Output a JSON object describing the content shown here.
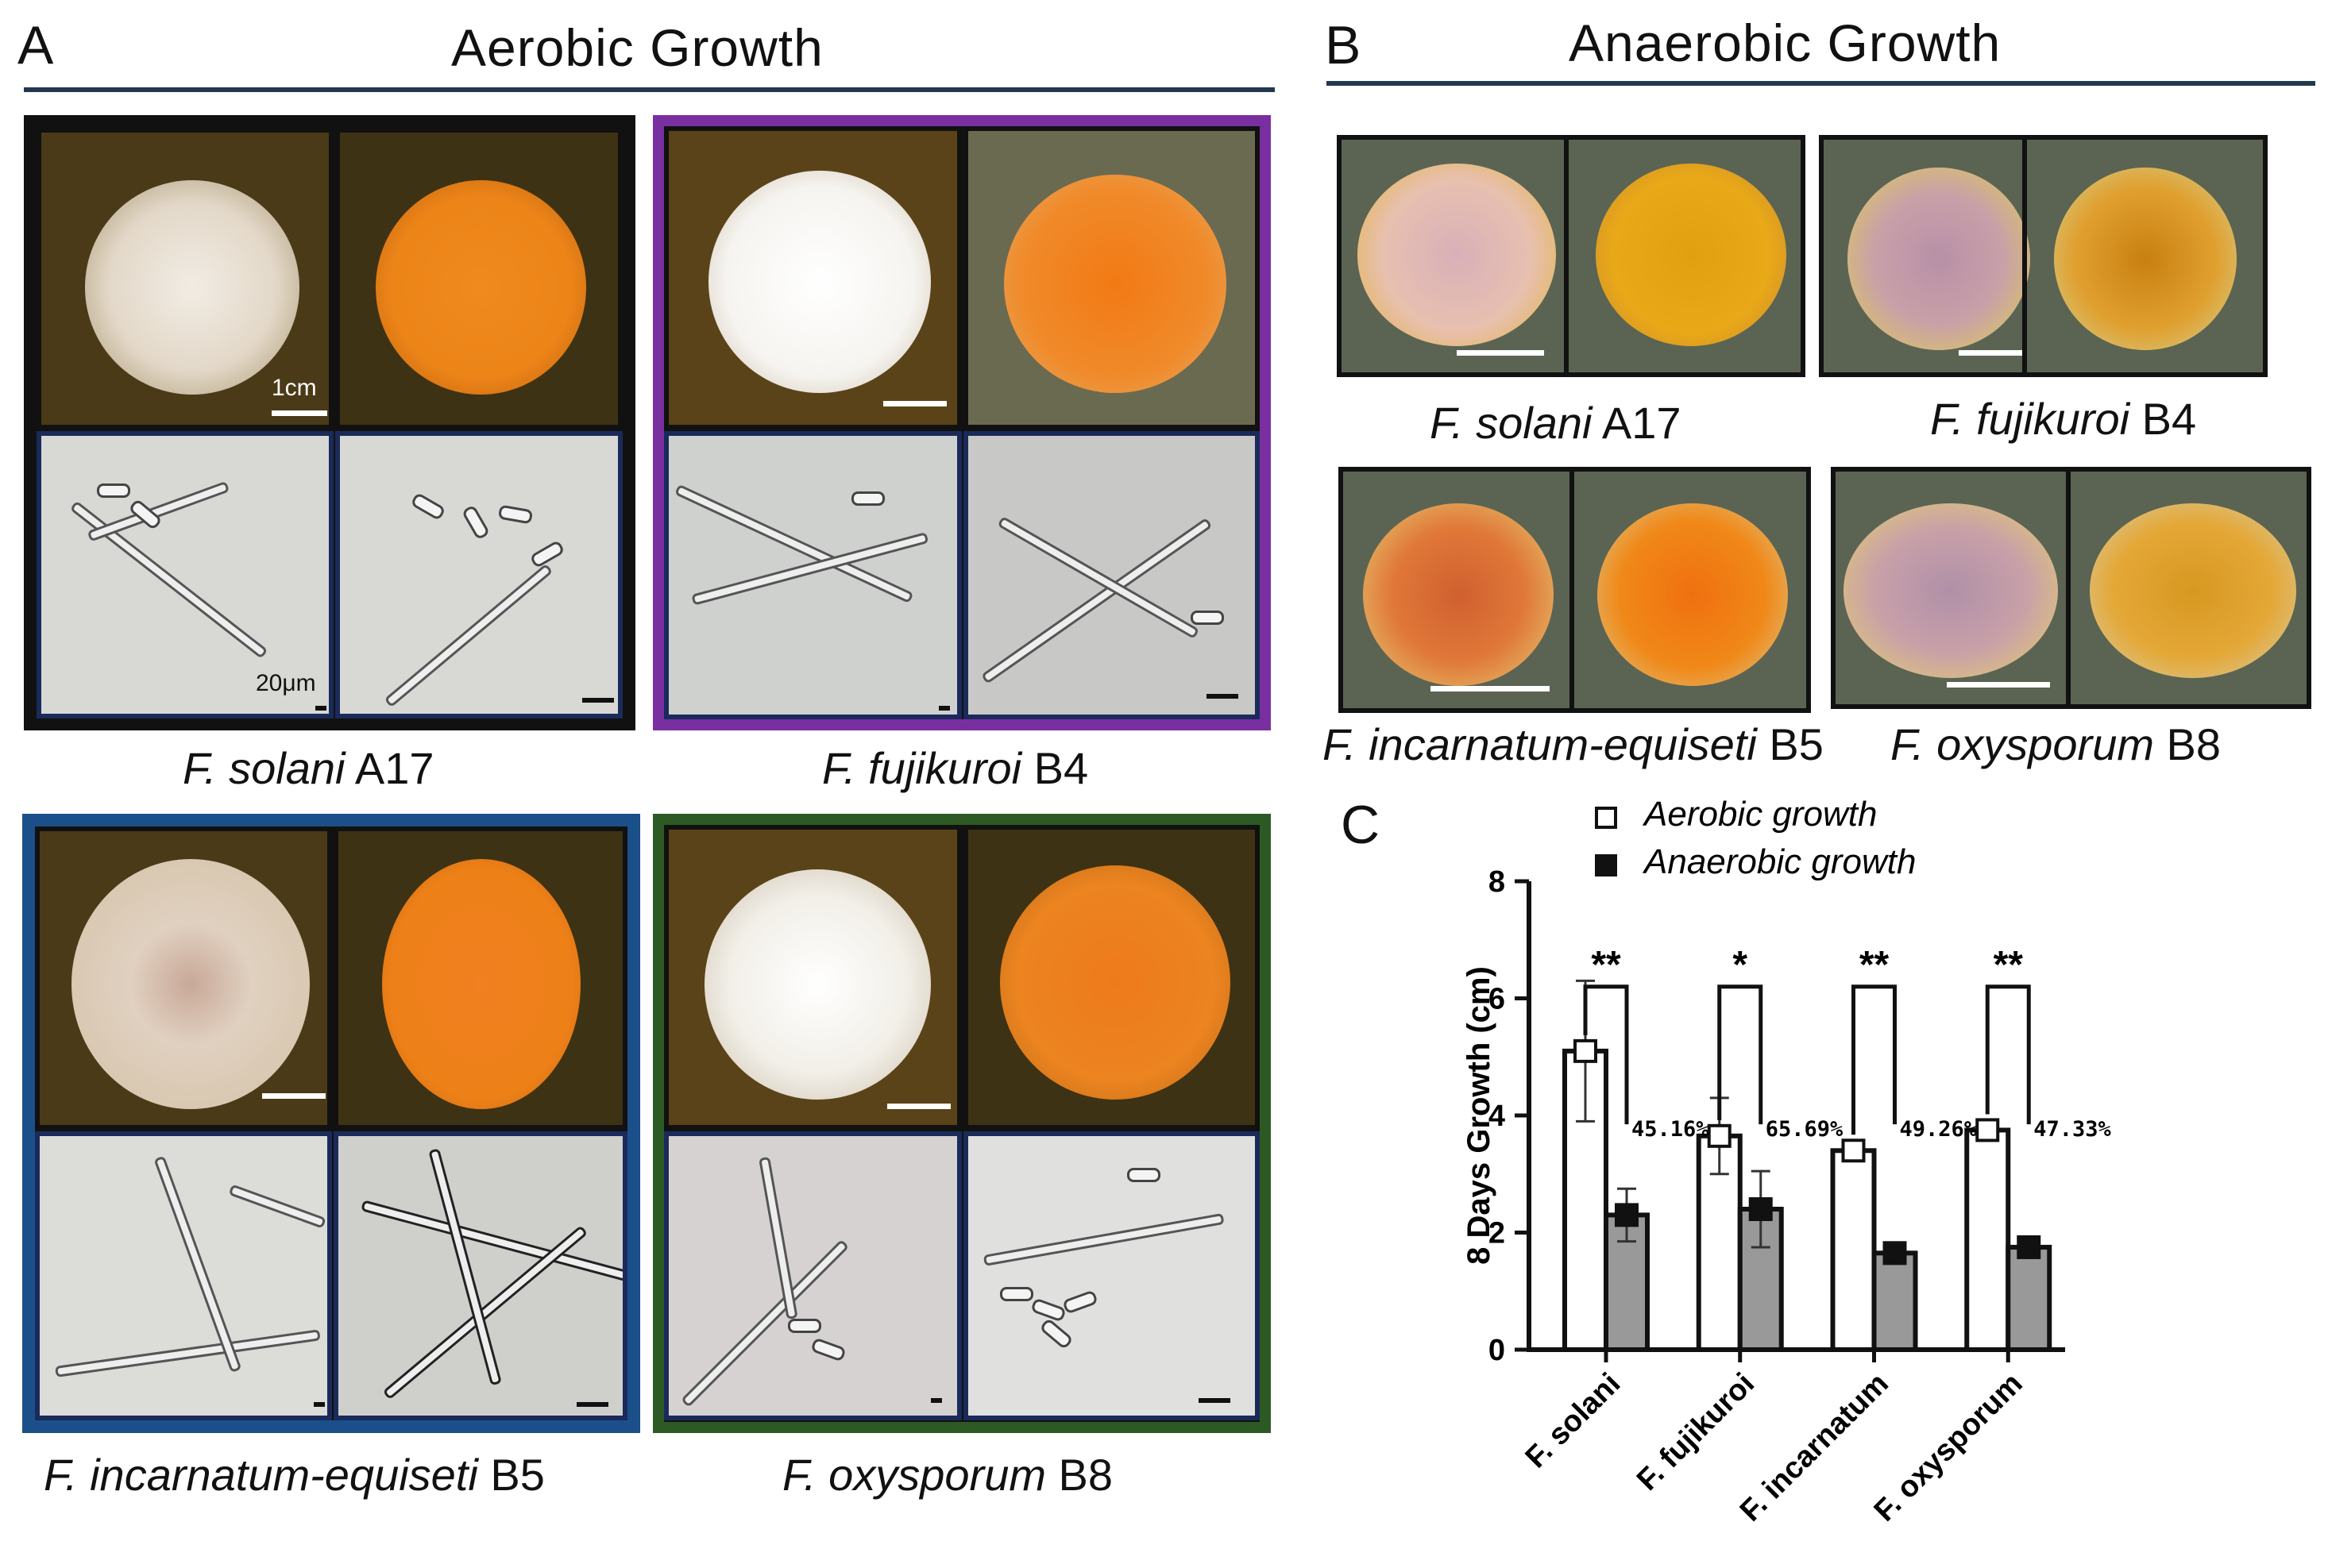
{
  "panelA": {
    "letter": "A",
    "title": "Aerobic Growth",
    "scale_cm": "1cm",
    "scale_um": "20μm",
    "panels": [
      {
        "genus": "F.",
        "species": "solani",
        "strain": "A17",
        "border": "#111111"
      },
      {
        "genus": "F.",
        "species": "fujikuroi",
        "strain": "B4",
        "border": "#7a2fa0"
      },
      {
        "genus": "F.",
        "species": "incarnatum-equiseti",
        "strain": "B5",
        "border": "#1b4f8a"
      },
      {
        "genus": "F.",
        "species": "oxysporum",
        "strain": "B8",
        "border": "#2d5a24"
      }
    ]
  },
  "panelB": {
    "letter": "B",
    "title": "Anaerobic Growth",
    "panels": [
      {
        "genus": "F.",
        "species": "solani",
        "strain": "A17"
      },
      {
        "genus": "F.",
        "species": "fujikuroi",
        "strain": "B4"
      },
      {
        "genus": "F.",
        "species": "incarnatum-equiseti",
        "strain": "B5"
      },
      {
        "genus": "F.",
        "species": "oxysporum",
        "strain": "B8"
      }
    ]
  },
  "panelC": {
    "letter": "C",
    "legend": [
      "Aerobic growth",
      "Anaerobic growth"
    ]
  },
  "chart_data": {
    "type": "bar",
    "categories": [
      "F. solani",
      "F. fujikuroi",
      "F. incarnatum",
      "F. oxysporum"
    ],
    "series": [
      {
        "name": "Aerobic growth",
        "values": [
          5.1,
          3.65,
          3.4,
          3.75
        ],
        "errors": [
          1.2,
          0.65,
          0.05,
          0.05
        ],
        "color": "#ffffff"
      },
      {
        "name": "Anaerobic growth",
        "values": [
          2.3,
          2.4,
          1.65,
          1.75
        ],
        "errors": [
          0.45,
          0.65,
          0.05,
          0.05
        ],
        "color": "#999999"
      }
    ],
    "significance": [
      "**",
      "*",
      "**",
      "**"
    ],
    "percent_labels": [
      "45.16%",
      "65.69%",
      "49.26%",
      "47.33%"
    ],
    "ylabel": "8 Days Growth (cm)",
    "ylim": [
      0,
      8
    ],
    "yticks": [
      "0",
      "2",
      "4",
      "6",
      "8"
    ],
    "legend_position": "top"
  }
}
